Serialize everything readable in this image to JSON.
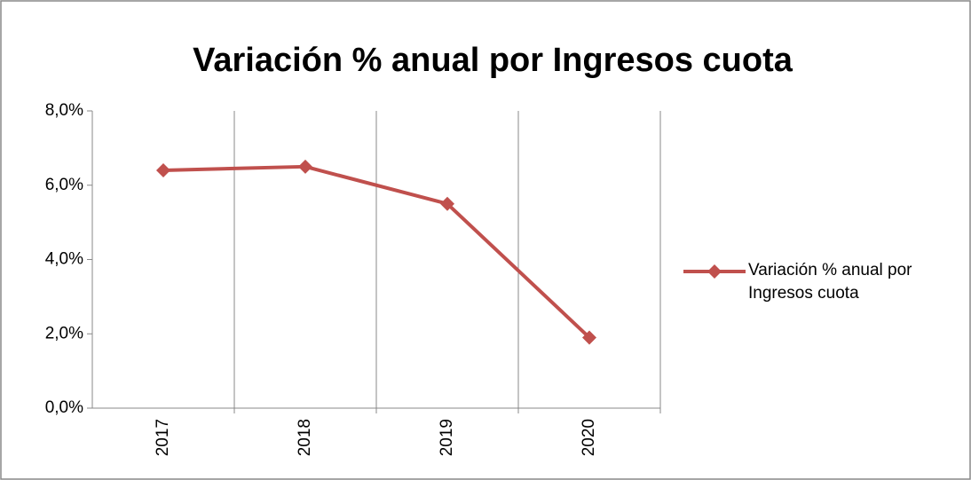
{
  "chart_data": {
    "type": "line",
    "title": "Variación % anual por Ingresos cuota",
    "categories": [
      "2017",
      "2018",
      "2019",
      "2020"
    ],
    "series": [
      {
        "name": "Variación % anual por Ingresos cuota",
        "color": "#c0504d",
        "values": [
          6.4,
          6.5,
          5.5,
          1.9
        ]
      }
    ],
    "ylim": [
      0,
      8
    ],
    "yticks": [
      {
        "value": 0,
        "label": "0,0%"
      },
      {
        "value": 2,
        "label": "2,0%"
      },
      {
        "value": 4,
        "label": "4,0%"
      },
      {
        "value": 6,
        "label": "6,0%"
      },
      {
        "value": 8,
        "label": "8,0%"
      }
    ],
    "xgrid": true,
    "legend": "right"
  }
}
